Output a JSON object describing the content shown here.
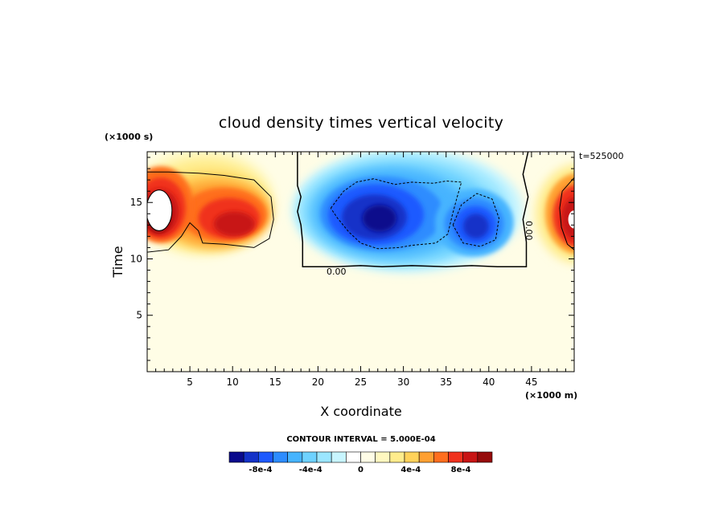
{
  "chart_data": {
    "type": "heatmap",
    "title": "cloud density times vertical velocity",
    "xlabel": "X coordinate",
    "ylabel": "Time",
    "x_unit": "(×1000 m)",
    "y_unit": "(×1000 s)",
    "time_stamp": "t=525000",
    "xlim": [
      0,
      50
    ],
    "ylim": [
      0,
      19.5
    ],
    "x_ticks": [
      5,
      10,
      15,
      20,
      25,
      30,
      35,
      40,
      45
    ],
    "x_tick_labels": [
      "5",
      "10",
      "15",
      "20",
      "25",
      "30",
      "35",
      "40",
      "45"
    ],
    "y_ticks": [
      5,
      10,
      15
    ],
    "y_tick_labels": [
      "5",
      "10",
      "15"
    ],
    "contour_interval": "CONTOUR INTERVAL = 5.000E-04",
    "contour_labels": [
      "0.00",
      "0.00"
    ],
    "colorbar": {
      "colors": [
        "#0a0a8c",
        "#1432c8",
        "#1e5aff",
        "#2d8cff",
        "#46b4ff",
        "#6ed2ff",
        "#9be6ff",
        "#c8f5ff",
        "#ffffff",
        "#fffde6",
        "#fff8c0",
        "#ffec8c",
        "#ffd25a",
        "#ffa032",
        "#ff6e1e",
        "#f0321e",
        "#c81414",
        "#960a0a"
      ],
      "tick_labels": [
        "-8e-4",
        "-4e-4",
        "0",
        "4e-4",
        "8e-4"
      ],
      "tick_values": [
        -0.0008,
        -0.0004,
        0,
        0.0004,
        0.0008
      ]
    },
    "features": [
      {
        "name": "updraft core west",
        "x": 1.5,
        "y": 14,
        "peak": 0.0011
      },
      {
        "name": "updraft west",
        "x": 9.5,
        "y": 13.5,
        "peak": 0.0009
      },
      {
        "name": "downdraft central",
        "x": 27,
        "y": 13.5,
        "peak": -0.0009
      },
      {
        "name": "downdraft east",
        "x": 38,
        "y": 13,
        "peak": -0.0008
      },
      {
        "name": "updraft east edge",
        "x": 49.7,
        "y": 13.5,
        "peak": 0.0011
      }
    ]
  }
}
